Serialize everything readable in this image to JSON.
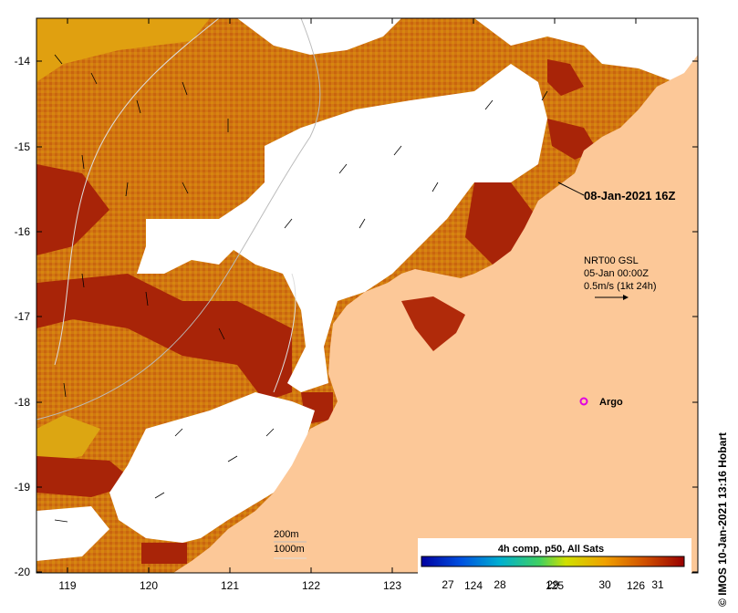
{
  "map": {
    "lon_ticks": [
      "119",
      "120",
      "121",
      "122",
      "123",
      "124",
      "125",
      "126"
    ],
    "lat_ticks": [
      "-14",
      "-15",
      "-16",
      "-17",
      "-18",
      "-19",
      "-20"
    ],
    "lon_range": [
      118.6,
      126.7
    ],
    "lat_range": [
      -20.1,
      -13.6
    ],
    "timestamp_label": "08-Jan-2021 16Z",
    "current_info": {
      "line1": "NRT00 GSL",
      "line2": "05-Jan 00:00Z",
      "line3": "0.5m/s (1kt 24h)"
    },
    "argo_label": "Argo",
    "depth_labels": {
      "d200": "200m",
      "d1000": "1000m"
    },
    "colorbar": {
      "title": "4h comp, p50, All Sats",
      "ticks": [
        "27",
        "28",
        "29",
        "30",
        "31"
      ],
      "range": [
        26.5,
        31.5
      ]
    },
    "credit": "© IMOS 10-Jan-2021 13:16 Hobart",
    "colors": {
      "land": "#fcc898",
      "no_data": "#ffffff",
      "warm_sst": "#cd6a10",
      "hot_sst": "#a81e08",
      "argo_marker": "#e000e0"
    }
  }
}
